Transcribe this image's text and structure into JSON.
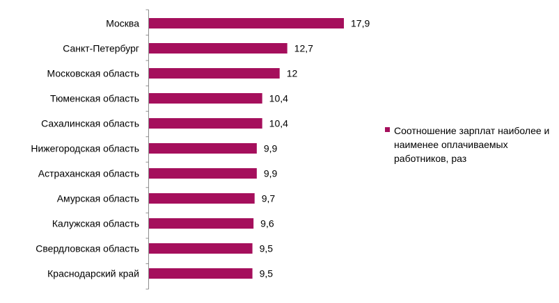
{
  "chart_data": {
    "type": "bar",
    "orientation": "horizontal",
    "categories": [
      "Москва",
      "Санкт-Петербург",
      "Московская область",
      "Тюменская область",
      "Сахалинская область",
      "Нижегородская область",
      "Астраханская область",
      "Амурская область",
      "Калужская область",
      "Свердловская область",
      "Краснодарский край"
    ],
    "series": [
      {
        "name": "Соотношение зарплат наиболее и наименее оплачиваемых работников, раз",
        "values": [
          17.9,
          12.7,
          12,
          10.4,
          10.4,
          9.9,
          9.9,
          9.7,
          9.6,
          9.5,
          9.5
        ],
        "labels": [
          "17,9",
          "12,7",
          "12",
          "10,4",
          "10,4",
          "9,9",
          "9,9",
          "9,7",
          "9,6",
          "9,5",
          "9,5"
        ],
        "color": "#a50f5c"
      }
    ],
    "xlim": [
      0,
      17.9
    ],
    "grid": false,
    "legend": "right"
  }
}
